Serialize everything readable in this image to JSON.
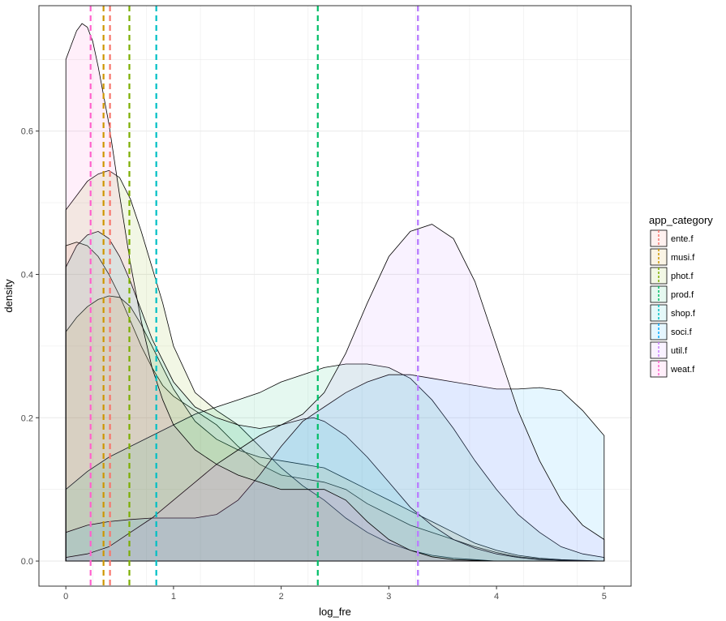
{
  "chart_data": {
    "type": "area",
    "xlabel": "log_fre",
    "ylabel": "density",
    "xlim": [
      -0.25,
      5.25
    ],
    "ylim": [
      -0.035,
      0.775
    ],
    "x_ticks": [
      0,
      1,
      2,
      3,
      4,
      5
    ],
    "y_ticks": [
      0.0,
      0.2,
      0.4,
      0.6
    ],
    "y_tick_labels": [
      "0.0",
      "0.2",
      "0.4",
      "0.6"
    ],
    "grid": true,
    "legend": {
      "title": "app_category",
      "position": "right"
    },
    "series": [
      {
        "name": "ente.f",
        "color": "#F8766D",
        "mean": 0.41,
        "points": [
          [
            0,
            0.44
          ],
          [
            0.1,
            0.445
          ],
          [
            0.2,
            0.44
          ],
          [
            0.3,
            0.425
          ],
          [
            0.4,
            0.4
          ],
          [
            0.5,
            0.37
          ],
          [
            0.6,
            0.335
          ],
          [
            0.7,
            0.3
          ],
          [
            0.8,
            0.27
          ],
          [
            0.9,
            0.245
          ],
          [
            1.0,
            0.23
          ],
          [
            1.2,
            0.21
          ],
          [
            1.4,
            0.19
          ],
          [
            1.6,
            0.16
          ],
          [
            1.8,
            0.135
          ],
          [
            2.0,
            0.12
          ],
          [
            2.2,
            0.115
          ],
          [
            2.4,
            0.11
          ],
          [
            2.6,
            0.1
          ],
          [
            2.8,
            0.08
          ],
          [
            3.0,
            0.065
          ],
          [
            3.2,
            0.05
          ],
          [
            3.4,
            0.04
          ],
          [
            3.6,
            0.03
          ],
          [
            3.8,
            0.02
          ],
          [
            4.0,
            0.012
          ],
          [
            4.2,
            0.006
          ],
          [
            4.4,
            0.003
          ],
          [
            4.6,
            0.001
          ],
          [
            5.0,
            0.0
          ]
        ]
      },
      {
        "name": "musi.f",
        "color": "#CD9600",
        "mean": 0.35,
        "points": [
          [
            0,
            0.32
          ],
          [
            0.1,
            0.34
          ],
          [
            0.2,
            0.355
          ],
          [
            0.3,
            0.365
          ],
          [
            0.4,
            0.37
          ],
          [
            0.5,
            0.368
          ],
          [
            0.6,
            0.355
          ],
          [
            0.7,
            0.33
          ],
          [
            0.8,
            0.3
          ],
          [
            0.9,
            0.27
          ],
          [
            1.0,
            0.24
          ],
          [
            1.2,
            0.195
          ],
          [
            1.4,
            0.17
          ],
          [
            1.6,
            0.155
          ],
          [
            1.8,
            0.145
          ],
          [
            2.0,
            0.14
          ],
          [
            2.2,
            0.135
          ],
          [
            2.4,
            0.13
          ],
          [
            2.6,
            0.115
          ],
          [
            2.8,
            0.1
          ],
          [
            3.0,
            0.085
          ],
          [
            3.2,
            0.07
          ],
          [
            3.4,
            0.055
          ],
          [
            3.6,
            0.04
          ],
          [
            3.8,
            0.025
          ],
          [
            4.0,
            0.015
          ],
          [
            4.2,
            0.008
          ],
          [
            4.4,
            0.004
          ],
          [
            4.6,
            0.002
          ],
          [
            5.0,
            0.0
          ]
        ]
      },
      {
        "name": "phot.f",
        "color": "#7CAE00",
        "mean": 0.59,
        "points": [
          [
            0,
            0.49
          ],
          [
            0.1,
            0.51
          ],
          [
            0.2,
            0.53
          ],
          [
            0.3,
            0.54
          ],
          [
            0.4,
            0.545
          ],
          [
            0.5,
            0.535
          ],
          [
            0.6,
            0.505
          ],
          [
            0.7,
            0.46
          ],
          [
            0.8,
            0.41
          ],
          [
            0.9,
            0.36
          ],
          [
            1.0,
            0.3
          ],
          [
            1.2,
            0.235
          ],
          [
            1.4,
            0.21
          ],
          [
            1.6,
            0.19
          ],
          [
            1.8,
            0.16
          ],
          [
            2.0,
            0.13
          ],
          [
            2.2,
            0.105
          ],
          [
            2.4,
            0.085
          ],
          [
            2.6,
            0.06
          ],
          [
            2.8,
            0.04
          ],
          [
            3.0,
            0.025
          ],
          [
            3.2,
            0.015
          ],
          [
            3.4,
            0.008
          ],
          [
            3.6,
            0.004
          ],
          [
            3.8,
            0.002
          ],
          [
            4.0,
            0.0
          ]
        ]
      },
      {
        "name": "prod.f",
        "color": "#00BE67",
        "mean": 2.34,
        "points": [
          [
            0,
            0.1
          ],
          [
            0.2,
            0.125
          ],
          [
            0.4,
            0.145
          ],
          [
            0.6,
            0.16
          ],
          [
            0.8,
            0.175
          ],
          [
            1.0,
            0.19
          ],
          [
            1.2,
            0.205
          ],
          [
            1.4,
            0.215
          ],
          [
            1.6,
            0.225
          ],
          [
            1.8,
            0.235
          ],
          [
            2.0,
            0.25
          ],
          [
            2.2,
            0.26
          ],
          [
            2.4,
            0.27
          ],
          [
            2.6,
            0.275
          ],
          [
            2.8,
            0.275
          ],
          [
            3.0,
            0.27
          ],
          [
            3.2,
            0.255
          ],
          [
            3.4,
            0.225
          ],
          [
            3.6,
            0.185
          ],
          [
            3.8,
            0.14
          ],
          [
            4.0,
            0.1
          ],
          [
            4.2,
            0.065
          ],
          [
            4.4,
            0.04
          ],
          [
            4.6,
            0.02
          ],
          [
            4.8,
            0.01
          ],
          [
            5.0,
            0.005
          ]
        ]
      },
      {
        "name": "shop.f",
        "color": "#00BFC4",
        "mean": 0.84,
        "points": [
          [
            0,
            0.41
          ],
          [
            0.1,
            0.44
          ],
          [
            0.2,
            0.455
          ],
          [
            0.3,
            0.46
          ],
          [
            0.4,
            0.45
          ],
          [
            0.5,
            0.425
          ],
          [
            0.6,
            0.39
          ],
          [
            0.7,
            0.35
          ],
          [
            0.8,
            0.31
          ],
          [
            0.9,
            0.28
          ],
          [
            1.0,
            0.25
          ],
          [
            1.2,
            0.215
          ],
          [
            1.4,
            0.2
          ],
          [
            1.6,
            0.19
          ],
          [
            1.8,
            0.185
          ],
          [
            2.0,
            0.19
          ],
          [
            2.2,
            0.198
          ],
          [
            2.3,
            0.2
          ],
          [
            2.4,
            0.195
          ],
          [
            2.6,
            0.175
          ],
          [
            2.8,
            0.145
          ],
          [
            3.0,
            0.11
          ],
          [
            3.2,
            0.075
          ],
          [
            3.4,
            0.05
          ],
          [
            3.6,
            0.03
          ],
          [
            3.8,
            0.018
          ],
          [
            4.0,
            0.01
          ],
          [
            4.2,
            0.005
          ],
          [
            4.4,
            0.002
          ],
          [
            5.0,
            0.0
          ]
        ]
      },
      {
        "name": "soci.f",
        "color": "#00A9FF",
        "mean": 3.27,
        "points": [
          [
            0,
            0.04
          ],
          [
            0.2,
            0.05
          ],
          [
            0.4,
            0.055
          ],
          [
            0.6,
            0.058
          ],
          [
            0.8,
            0.06
          ],
          [
            1.0,
            0.06
          ],
          [
            1.2,
            0.06
          ],
          [
            1.4,
            0.065
          ],
          [
            1.6,
            0.085
          ],
          [
            1.8,
            0.12
          ],
          [
            2.0,
            0.16
          ],
          [
            2.2,
            0.195
          ],
          [
            2.4,
            0.215
          ],
          [
            2.6,
            0.235
          ],
          [
            2.8,
            0.25
          ],
          [
            3.0,
            0.26
          ],
          [
            3.2,
            0.26
          ],
          [
            3.4,
            0.255
          ],
          [
            3.6,
            0.25
          ],
          [
            3.8,
            0.245
          ],
          [
            4.0,
            0.24
          ],
          [
            4.2,
            0.24
          ],
          [
            4.4,
            0.242
          ],
          [
            4.6,
            0.238
          ],
          [
            4.8,
            0.21
          ],
          [
            5.0,
            0.175
          ]
        ]
      },
      {
        "name": "util.f",
        "color": "#C77CFF",
        "mean": 3.27,
        "points": [
          [
            0,
            0.005
          ],
          [
            0.2,
            0.01
          ],
          [
            0.4,
            0.02
          ],
          [
            0.6,
            0.04
          ],
          [
            0.8,
            0.06
          ],
          [
            1.0,
            0.085
          ],
          [
            1.2,
            0.11
          ],
          [
            1.4,
            0.135
          ],
          [
            1.6,
            0.155
          ],
          [
            1.8,
            0.175
          ],
          [
            2.0,
            0.19
          ],
          [
            2.2,
            0.205
          ],
          [
            2.4,
            0.235
          ],
          [
            2.6,
            0.29
          ],
          [
            2.8,
            0.36
          ],
          [
            3.0,
            0.425
          ],
          [
            3.2,
            0.46
          ],
          [
            3.4,
            0.47
          ],
          [
            3.6,
            0.45
          ],
          [
            3.8,
            0.39
          ],
          [
            4.0,
            0.3
          ],
          [
            4.2,
            0.21
          ],
          [
            4.4,
            0.14
          ],
          [
            4.6,
            0.085
          ],
          [
            4.8,
            0.05
          ],
          [
            5.0,
            0.03
          ]
        ]
      },
      {
        "name": "weat.f",
        "color": "#FF61CC",
        "mean": 0.23,
        "points": [
          [
            0,
            0.7
          ],
          [
            0.05,
            0.72
          ],
          [
            0.1,
            0.74
          ],
          [
            0.15,
            0.75
          ],
          [
            0.2,
            0.745
          ],
          [
            0.25,
            0.725
          ],
          [
            0.3,
            0.69
          ],
          [
            0.4,
            0.61
          ],
          [
            0.5,
            0.51
          ],
          [
            0.6,
            0.415
          ],
          [
            0.7,
            0.335
          ],
          [
            0.8,
            0.27
          ],
          [
            0.9,
            0.225
          ],
          [
            1.0,
            0.19
          ],
          [
            1.2,
            0.155
          ],
          [
            1.4,
            0.135
          ],
          [
            1.6,
            0.12
          ],
          [
            1.8,
            0.11
          ],
          [
            2.0,
            0.1
          ],
          [
            2.2,
            0.1
          ],
          [
            2.4,
            0.1
          ],
          [
            2.6,
            0.085
          ],
          [
            2.8,
            0.055
          ],
          [
            3.0,
            0.03
          ],
          [
            3.2,
            0.015
          ],
          [
            3.4,
            0.006
          ],
          [
            3.6,
            0.002
          ],
          [
            4.0,
            0.0
          ]
        ]
      }
    ]
  }
}
